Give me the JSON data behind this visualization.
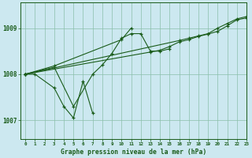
{
  "title": "Graphe pression niveau de la mer (hPa)",
  "bg_color": "#cce8f0",
  "grid_color": "#8bbfaa",
  "line_color": "#1a5c1a",
  "xlim": [
    -0.5,
    23
  ],
  "ylim": [
    1006.6,
    1009.55
  ],
  "yticks": [
    1007,
    1008,
    1009
  ],
  "xticks": [
    0,
    1,
    2,
    3,
    4,
    5,
    6,
    7,
    8,
    9,
    10,
    11,
    12,
    13,
    14,
    15,
    16,
    17,
    18,
    19,
    20,
    21,
    22,
    23
  ],
  "series": [
    {
      "x": [
        0,
        1,
        3,
        4,
        5,
        6,
        7
      ],
      "y": [
        1008.0,
        1008.0,
        1007.7,
        1007.3,
        1007.05,
        1007.85,
        1007.15
      ]
    },
    {
      "x": [
        0,
        3,
        5,
        7,
        8,
        9,
        10,
        11,
        12,
        13,
        14,
        15
      ],
      "y": [
        1008.0,
        1008.15,
        1007.3,
        1008.0,
        1008.2,
        1008.45,
        1008.78,
        1008.88,
        1008.88,
        1008.5,
        1008.5,
        1008.55
      ]
    },
    {
      "x": [
        0,
        13,
        14,
        15,
        16,
        17,
        18,
        19,
        20,
        21,
        22,
        23
      ],
      "y": [
        1008.0,
        1008.48,
        1008.52,
        1008.6,
        1008.7,
        1008.75,
        1008.82,
        1008.87,
        1008.93,
        1009.05,
        1009.18,
        1009.22
      ]
    },
    {
      "x": [
        0,
        16,
        17,
        18,
        19,
        20,
        21,
        22,
        23
      ],
      "y": [
        1008.0,
        1008.73,
        1008.78,
        1008.83,
        1008.88,
        1009.0,
        1009.1,
        1009.2,
        1009.25
      ]
    },
    {
      "x": [
        0,
        3,
        10,
        11
      ],
      "y": [
        1008.0,
        1008.18,
        1008.75,
        1009.0
      ]
    }
  ]
}
